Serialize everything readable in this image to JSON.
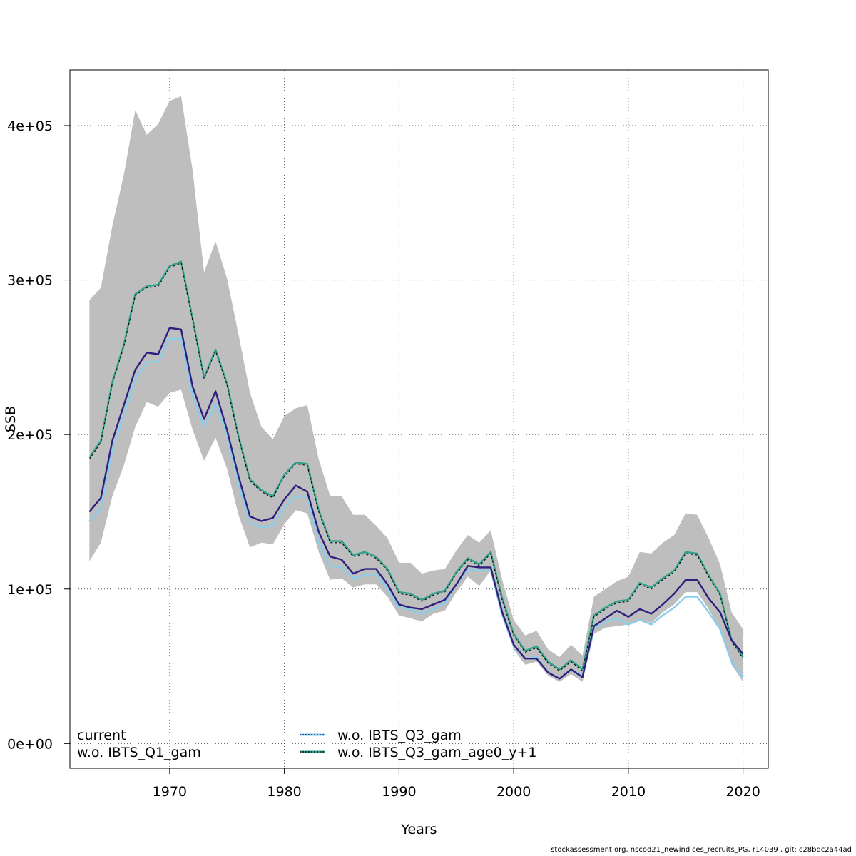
{
  "chart_data": {
    "type": "line",
    "title": "",
    "xlabel": "Years",
    "ylabel": "SSB",
    "xlim": [
      1961.3,
      2022.2
    ],
    "ylim": [
      -16000,
      436000
    ],
    "x_ticks": [
      1970,
      1980,
      1990,
      2000,
      2010,
      2020
    ],
    "x_tick_labels": [
      "1970",
      "1980",
      "1990",
      "2000",
      "2010",
      "2020"
    ],
    "y_ticks": [
      0,
      100000,
      200000,
      300000,
      400000
    ],
    "y_tick_labels": [
      "0e+00",
      "1e+05",
      "2e+05",
      "3e+05",
      "4e+05"
    ],
    "grid": true,
    "legend_position": "bottom",
    "legend": [
      {
        "label": "current",
        "color": "#000000",
        "style": "none"
      },
      {
        "label": "w.o. IBTS_Q1_gam",
        "color": "#000000",
        "style": "none"
      },
      {
        "label": "w.o. IBTS_Q3_gam",
        "color": "#000080",
        "style": "dotted",
        "highlight": "#87CEEB"
      },
      {
        "label": "w.o. IBTS_Q3_gam_age0_y+1",
        "color": "#000000",
        "style": "dotted",
        "highlight": "#2FA08A"
      }
    ],
    "x": [
      1963,
      1964,
      1965,
      1966,
      1967,
      1968,
      1969,
      1970,
      1971,
      1972,
      1973,
      1974,
      1975,
      1976,
      1977,
      1978,
      1979,
      1980,
      1981,
      1982,
      1983,
      1984,
      1985,
      1986,
      1987,
      1988,
      1989,
      1990,
      1991,
      1992,
      1993,
      1994,
      1995,
      1996,
      1997,
      1998,
      1999,
      2000,
      2001,
      2002,
      2003,
      2004,
      2005,
      2006,
      2007,
      2008,
      2009,
      2010,
      2011,
      2012,
      2013,
      2014,
      2015,
      2016,
      2017,
      2018,
      2019,
      2020
    ],
    "band": {
      "color": "#BEBEBE",
      "upper": [
        287000,
        295000,
        335000,
        368000,
        410000,
        394000,
        401000,
        416000,
        419000,
        371000,
        305000,
        325000,
        301000,
        265000,
        227000,
        205000,
        197000,
        212000,
        217000,
        219000,
        184000,
        160000,
        160000,
        148000,
        148000,
        141000,
        133000,
        117000,
        117000,
        110000,
        112000,
        113000,
        125000,
        135000,
        130000,
        138000,
        106000,
        80000,
        70000,
        73000,
        61000,
        56000,
        64000,
        57000,
        95000,
        100000,
        105000,
        108000,
        124000,
        123000,
        130000,
        135000,
        149000,
        148000,
        133000,
        116000,
        85000,
        74000
      ],
      "lower": [
        118000,
        130000,
        160000,
        180000,
        205000,
        221000,
        218000,
        227000,
        229000,
        203000,
        183000,
        198000,
        178000,
        148000,
        127000,
        130000,
        129000,
        142000,
        151000,
        149000,
        124000,
        106000,
        107000,
        101000,
        103000,
        103000,
        95000,
        83000,
        81000,
        79000,
        84000,
        86000,
        98000,
        108000,
        102000,
        112000,
        83000,
        61000,
        51000,
        53000,
        44000,
        40000,
        45000,
        40000,
        71000,
        75000,
        76000,
        77000,
        80000,
        78000,
        85000,
        90000,
        98000,
        98000,
        87000,
        74000,
        51000,
        40000
      ]
    },
    "series": [
      {
        "color": "#2FA08A",
        "width": 2.4,
        "dash": "",
        "values": [
          185000,
          196000,
          234000,
          258000,
          291000,
          296000,
          297000,
          309000,
          312000,
          275000,
          237000,
          255000,
          233000,
          199000,
          171000,
          164000,
          160000,
          174000,
          182000,
          181000,
          151000,
          131000,
          131000,
          122000,
          124000,
          121000,
          113000,
          98000,
          97000,
          93000,
          97000,
          99000,
          111000,
          120000,
          116000,
          124000,
          94000,
          71000,
          60000,
          63000,
          53000,
          48000,
          54000,
          48000,
          83000,
          88000,
          92000,
          93000,
          104000,
          101000,
          107000,
          112000,
          124000,
          123000,
          109000,
          97000,
          67000,
          56000
        ]
      },
      {
        "color": "#000000",
        "width": 1.1,
        "dash": "3,3",
        "values": [
          184000,
          195000,
          233000,
          257000,
          290000,
          295000,
          296000,
          308000,
          311000,
          274000,
          236000,
          254000,
          232000,
          198000,
          170000,
          163000,
          159000,
          173000,
          181000,
          180000,
          150000,
          130000,
          130000,
          121000,
          123000,
          120000,
          112000,
          97000,
          96000,
          92000,
          96000,
          98000,
          110000,
          119000,
          115000,
          123000,
          93000,
          70000,
          59000,
          62000,
          52000,
          47000,
          53000,
          47000,
          82000,
          87000,
          91000,
          92000,
          103000,
          100000,
          106000,
          111000,
          123000,
          122000,
          108000,
          96000,
          66000,
          55000
        ]
      },
      {
        "color": "#87CEEB",
        "width": 2.4,
        "dash": "",
        "values": [
          144000,
          152000,
          190000,
          213000,
          236000,
          247000,
          247000,
          262000,
          262000,
          225000,
          205000,
          220000,
          200000,
          168000,
          143000,
          140000,
          141000,
          153000,
          160000,
          160000,
          130000,
          115000,
          114000,
          107000,
          109000,
          110000,
          100000,
          88000,
          87000,
          84000,
          87000,
          91000,
          103000,
          113000,
          112000,
          112000,
          83000,
          63000,
          55000,
          56000,
          46000,
          42000,
          48000,
          44000,
          74000,
          79000,
          81000,
          77000,
          80000,
          77000,
          83000,
          88000,
          95000,
          95000,
          85000,
          74000,
          53000,
          43000
        ]
      },
      {
        "color": "#2E1F7E",
        "width": 2.4,
        "dash": "",
        "values": [
          150000,
          159000,
          196000,
          219000,
          242000,
          253000,
          252000,
          269000,
          268000,
          231000,
          210000,
          228000,
          203000,
          173000,
          147000,
          144000,
          146000,
          158000,
          167000,
          163000,
          137000,
          121000,
          119000,
          110000,
          113000,
          113000,
          103000,
          90000,
          88000,
          87000,
          90000,
          93000,
          103000,
          115000,
          114000,
          114000,
          85000,
          64000,
          55000,
          55000,
          46000,
          42000,
          48000,
          43000,
          76000,
          81000,
          86000,
          82000,
          87000,
          84000,
          90000,
          97000,
          106000,
          106000,
          94000,
          85000,
          67000,
          58000
        ]
      }
    ]
  },
  "footer": {
    "text": "stockassessment.org, nscod21_newindices_recruits_PG, r14039 , git: c28bdc2a44ad"
  }
}
